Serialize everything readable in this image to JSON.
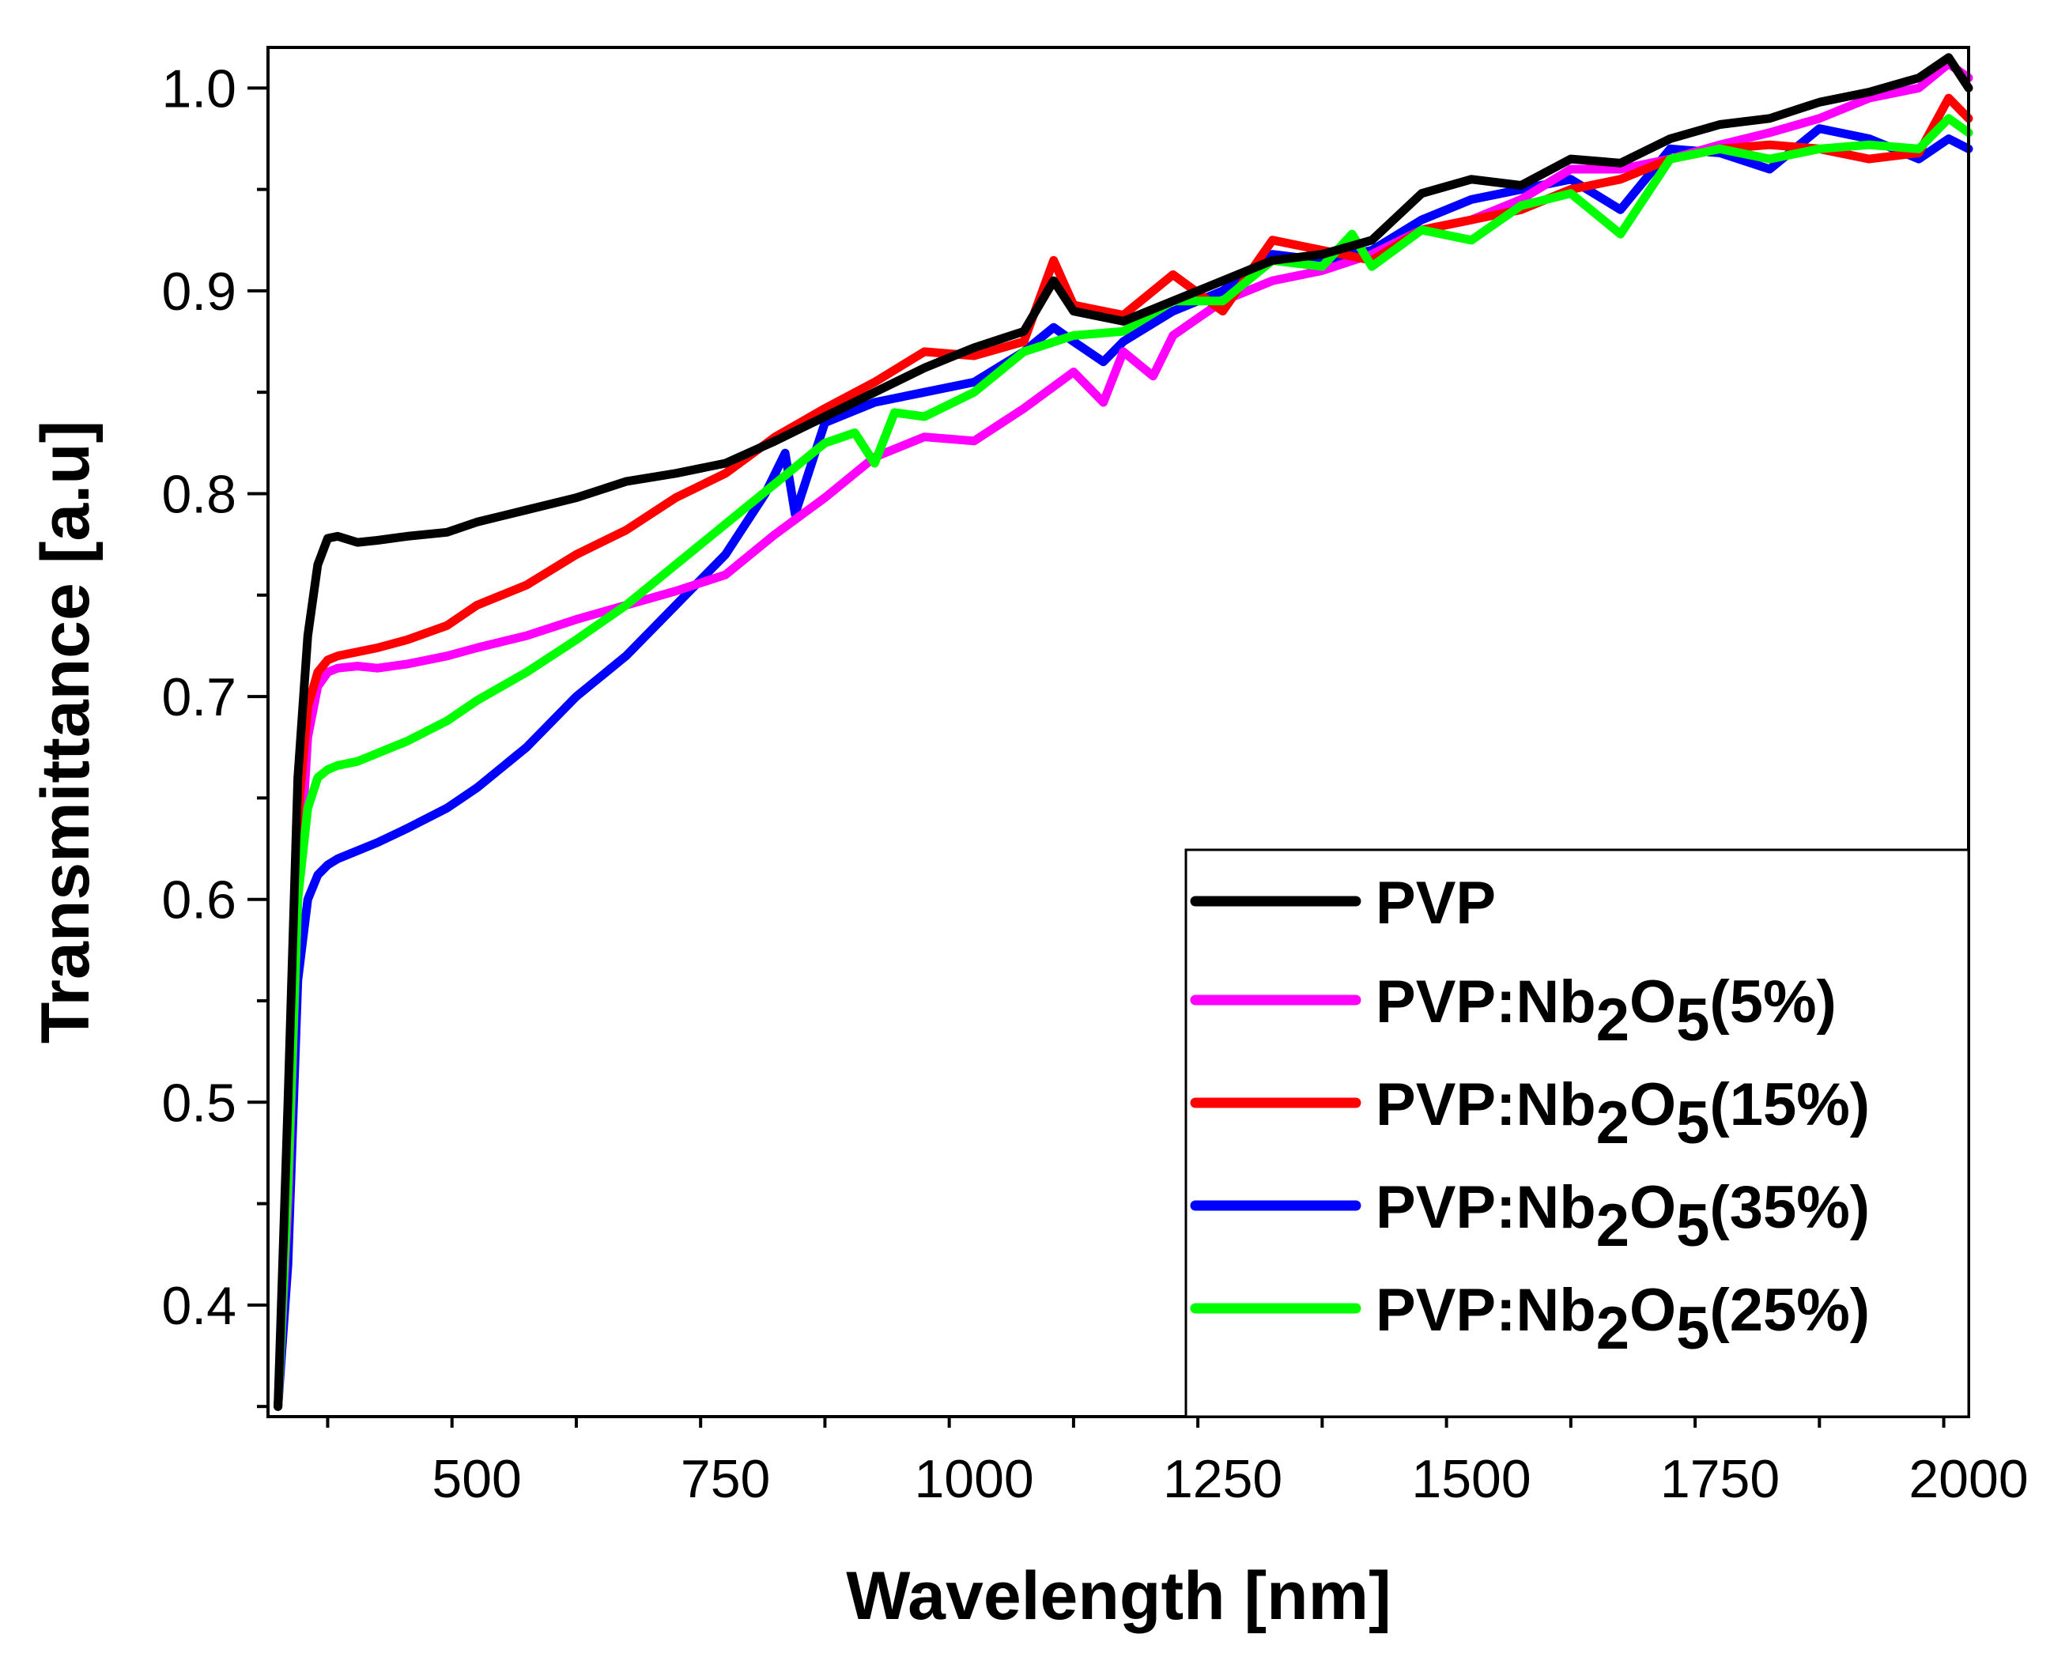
{
  "chart_data": {
    "type": "line",
    "title": "",
    "xlabel": "Wavelength [nm]",
    "ylabel": "Transmittance [a.u]",
    "xlim": [
      290,
      2000
    ],
    "ylim": [
      0.345,
      1.02
    ],
    "xticks": [
      500,
      750,
      1000,
      1250,
      1500,
      1750,
      2000
    ],
    "xtick_labels": [
      "500",
      "750",
      "1000",
      "1250",
      "1500",
      "1750",
      "2000"
    ],
    "yticks": [
      0.4,
      0.5,
      0.6,
      0.7,
      0.8,
      0.9,
      1.0
    ],
    "ytick_labels": [
      "0.4",
      "0.5",
      "0.6",
      "0.7",
      "0.8",
      "0.9",
      "1.0"
    ],
    "grid": false,
    "legend_position": "bottom-right",
    "legend_order": [
      "PVP",
      "PVP:Nb2O5(5%)",
      "PVP:Nb2O5(15%)",
      "PVP:Nb2O5(35%)",
      "PVP:Nb2O5(25%)"
    ],
    "series": [
      {
        "name": "PVP",
        "label_main": "PVP",
        "label_sub1": "",
        "label_mid": "",
        "label_sub2": "",
        "label_tail": "",
        "color": "#000000",
        "x": [
          300,
          310,
          320,
          330,
          340,
          350,
          360,
          380,
          400,
          430,
          470,
          500,
          550,
          600,
          650,
          700,
          750,
          800,
          850,
          900,
          950,
          1000,
          1050,
          1080,
          1100,
          1150,
          1200,
          1250,
          1300,
          1350,
          1400,
          1450,
          1500,
          1550,
          1600,
          1650,
          1700,
          1750,
          1800,
          1850,
          1900,
          1950,
          1980,
          2000
        ],
        "y": [
          0.35,
          0.5,
          0.66,
          0.73,
          0.765,
          0.778,
          0.779,
          0.776,
          0.777,
          0.779,
          0.781,
          0.786,
          0.792,
          0.798,
          0.806,
          0.81,
          0.815,
          0.826,
          0.838,
          0.85,
          0.862,
          0.872,
          0.88,
          0.905,
          0.89,
          0.885,
          0.895,
          0.905,
          0.915,
          0.918,
          0.925,
          0.948,
          0.955,
          0.952,
          0.965,
          0.963,
          0.975,
          0.982,
          0.985,
          0.993,
          0.998,
          1.005,
          1.015,
          1.0
        ]
      },
      {
        "name": "PVP:Nb2O5(5%)",
        "label_main": "PVP:Nb",
        "label_sub1": "2",
        "label_mid": "O",
        "label_sub2": "5",
        "label_tail": "(5%)",
        "color": "#ff00ff",
        "x": [
          300,
          310,
          320,
          330,
          340,
          350,
          360,
          380,
          400,
          430,
          470,
          500,
          550,
          600,
          650,
          700,
          750,
          800,
          850,
          900,
          950,
          1000,
          1050,
          1100,
          1130,
          1150,
          1180,
          1200,
          1250,
          1300,
          1350,
          1400,
          1450,
          1500,
          1550,
          1600,
          1650,
          1700,
          1750,
          1800,
          1850,
          1900,
          1950,
          1980,
          2000
        ],
        "y": [
          0.35,
          0.45,
          0.6,
          0.68,
          0.705,
          0.712,
          0.714,
          0.715,
          0.714,
          0.716,
          0.72,
          0.724,
          0.73,
          0.738,
          0.745,
          0.752,
          0.76,
          0.78,
          0.798,
          0.818,
          0.828,
          0.826,
          0.842,
          0.86,
          0.845,
          0.87,
          0.858,
          0.878,
          0.895,
          0.905,
          0.91,
          0.918,
          0.93,
          0.935,
          0.945,
          0.96,
          0.96,
          0.965,
          0.972,
          0.978,
          0.985,
          0.995,
          1.0,
          1.012,
          1.005
        ]
      },
      {
        "name": "PVP:Nb2O5(15%)",
        "label_main": "PVP:Nb",
        "label_sub1": "2",
        "label_mid": "O",
        "label_sub2": "5",
        "label_tail": "(15%)",
        "color": "#ff0000",
        "x": [
          300,
          310,
          320,
          330,
          340,
          350,
          360,
          380,
          400,
          430,
          470,
          500,
          550,
          600,
          650,
          700,
          750,
          800,
          850,
          900,
          950,
          1000,
          1050,
          1080,
          1100,
          1150,
          1200,
          1250,
          1300,
          1350,
          1400,
          1450,
          1500,
          1550,
          1600,
          1650,
          1700,
          1750,
          1800,
          1850,
          1900,
          1950,
          1980,
          2000
        ],
        "y": [
          0.35,
          0.48,
          0.64,
          0.695,
          0.712,
          0.718,
          0.72,
          0.722,
          0.724,
          0.728,
          0.735,
          0.745,
          0.755,
          0.77,
          0.782,
          0.798,
          0.81,
          0.828,
          0.842,
          0.855,
          0.87,
          0.868,
          0.875,
          0.915,
          0.893,
          0.888,
          0.908,
          0.89,
          0.925,
          0.92,
          0.915,
          0.93,
          0.935,
          0.94,
          0.95,
          0.955,
          0.965,
          0.97,
          0.972,
          0.97,
          0.965,
          0.968,
          0.995,
          0.985
        ]
      },
      {
        "name": "PVP:Nb2O5(35%)",
        "label_main": "PVP:Nb",
        "label_sub1": "2",
        "label_mid": "O",
        "label_sub2": "5",
        "label_tail": "(35%)",
        "color": "#0000ff",
        "x": [
          300,
          310,
          320,
          330,
          340,
          350,
          360,
          380,
          400,
          430,
          470,
          500,
          550,
          600,
          650,
          700,
          750,
          790,
          800,
          810,
          820,
          850,
          900,
          950,
          1000,
          1050,
          1080,
          1100,
          1130,
          1150,
          1200,
          1250,
          1300,
          1350,
          1400,
          1450,
          1500,
          1550,
          1600,
          1650,
          1700,
          1750,
          1800,
          1850,
          1900,
          1950,
          1980,
          2000
        ],
        "y": [
          0.35,
          0.42,
          0.56,
          0.6,
          0.612,
          0.617,
          0.62,
          0.624,
          0.628,
          0.635,
          0.645,
          0.655,
          0.675,
          0.7,
          0.72,
          0.745,
          0.77,
          0.8,
          0.81,
          0.82,
          0.79,
          0.835,
          0.845,
          0.85,
          0.855,
          0.87,
          0.882,
          0.875,
          0.865,
          0.875,
          0.89,
          0.9,
          0.918,
          0.915,
          0.92,
          0.935,
          0.945,
          0.95,
          0.955,
          0.94,
          0.97,
          0.968,
          0.96,
          0.98,
          0.975,
          0.965,
          0.975,
          0.97
        ]
      },
      {
        "name": "PVP:Nb2O5(25%)",
        "label_main": "PVP:Nb",
        "label_sub1": "2",
        "label_mid": "O",
        "label_sub2": "5",
        "label_tail": "(25%)",
        "color": "#00ff00",
        "x": [
          300,
          310,
          320,
          330,
          340,
          350,
          360,
          380,
          400,
          430,
          470,
          500,
          550,
          600,
          650,
          700,
          750,
          800,
          850,
          880,
          900,
          920,
          950,
          1000,
          1050,
          1100,
          1150,
          1200,
          1250,
          1300,
          1350,
          1380,
          1400,
          1450,
          1500,
          1550,
          1600,
          1650,
          1700,
          1750,
          1800,
          1850,
          1900,
          1950,
          1980,
          2000
        ],
        "y": [
          0.35,
          0.46,
          0.6,
          0.645,
          0.66,
          0.664,
          0.666,
          0.668,
          0.672,
          0.678,
          0.688,
          0.698,
          0.712,
          0.728,
          0.745,
          0.765,
          0.785,
          0.805,
          0.825,
          0.83,
          0.815,
          0.84,
          0.838,
          0.85,
          0.87,
          0.878,
          0.88,
          0.895,
          0.895,
          0.915,
          0.912,
          0.928,
          0.912,
          0.93,
          0.925,
          0.942,
          0.948,
          0.928,
          0.965,
          0.97,
          0.965,
          0.97,
          0.972,
          0.97,
          0.985,
          0.978
        ]
      }
    ]
  }
}
